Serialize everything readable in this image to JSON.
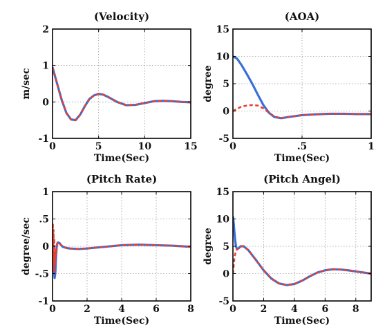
{
  "chart_data": [
    {
      "type": "line",
      "title": "(Velocity)",
      "xlabel": "Time(Sec)",
      "ylabel": "m/sec",
      "xlim": [
        0,
        15
      ],
      "ylim": [
        -1,
        2
      ],
      "xticks": [
        0,
        5,
        10,
        15
      ],
      "yticks": [
        -1,
        0,
        1,
        2
      ],
      "grid": true,
      "series": [
        {
          "color": "#3a6fd8",
          "style": "solid",
          "x": [
            0,
            0.5,
            1,
            1.5,
            2,
            2.5,
            3,
            3.5,
            4,
            4.5,
            5,
            5.5,
            6,
            7,
            8,
            9,
            10,
            11,
            12,
            13,
            14,
            15
          ],
          "y": [
            0.95,
            0.5,
            0.05,
            -0.3,
            -0.48,
            -0.5,
            -0.35,
            -0.12,
            0.08,
            0.18,
            0.22,
            0.2,
            0.14,
            0.0,
            -0.09,
            -0.08,
            -0.03,
            0.02,
            0.03,
            0.02,
            0.0,
            -0.01
          ]
        },
        {
          "color": "#e84030",
          "style": "dashed",
          "x": [
            0,
            0.5,
            1,
            1.5,
            2,
            2.5,
            3,
            3.5,
            4,
            4.5,
            5,
            5.5,
            6,
            7,
            8,
            9,
            10,
            11,
            12,
            13,
            14,
            15
          ],
          "y": [
            0.95,
            0.5,
            0.05,
            -0.3,
            -0.48,
            -0.5,
            -0.35,
            -0.12,
            0.08,
            0.18,
            0.22,
            0.2,
            0.14,
            0.0,
            -0.09,
            -0.08,
            -0.03,
            0.02,
            0.03,
            0.02,
            0.0,
            -0.01
          ]
        }
      ]
    },
    {
      "type": "line",
      "title": "(AOA)",
      "xlabel": "Time(Sec)",
      "ylabel": "degree",
      "xlim": [
        0,
        1
      ],
      "ylim": [
        -5,
        15
      ],
      "xticks": [
        0,
        0.5,
        1
      ],
      "yticks": [
        -5,
        0,
        5,
        10,
        15
      ],
      "grid": true,
      "series": [
        {
          "color": "#3a6fd8",
          "style": "solid",
          "x": [
            0,
            0.03,
            0.06,
            0.1,
            0.14,
            0.18,
            0.22,
            0.26,
            0.3,
            0.35,
            0.4,
            0.5,
            0.6,
            0.7,
            0.8,
            0.9,
            1.0
          ],
          "y": [
            10,
            9.6,
            8.5,
            6.8,
            5.0,
            3.0,
            1.1,
            -0.3,
            -1.1,
            -1.3,
            -1.1,
            -0.75,
            -0.6,
            -0.5,
            -0.5,
            -0.55,
            -0.55
          ]
        },
        {
          "color": "#e84030",
          "style": "dashed",
          "x": [
            0,
            0.03,
            0.06,
            0.1,
            0.14,
            0.18,
            0.22,
            0.26,
            0.3,
            0.35,
            0.4,
            0.5,
            0.6,
            0.7,
            0.8,
            0.9,
            1.0
          ],
          "y": [
            0,
            0.4,
            0.8,
            1.0,
            1.1,
            1.0,
            0.5,
            -0.3,
            -1.0,
            -1.3,
            -1.1,
            -0.75,
            -0.6,
            -0.5,
            -0.5,
            -0.55,
            -0.55
          ]
        }
      ]
    },
    {
      "type": "line",
      "title": "(Pitch Rate)",
      "xlabel": "Time(Sec)",
      "ylabel": "degree/sec",
      "xlim": [
        0,
        8
      ],
      "ylim": [
        -1,
        1
      ],
      "xticks": [
        0,
        2,
        4,
        6,
        8
      ],
      "yticks": [
        -1,
        -0.5,
        0,
        0.5,
        1
      ],
      "grid": true,
      "series": [
        {
          "color": "#3a6fd8",
          "style": "solid",
          "x": [
            0,
            0.04,
            0.08,
            0.12,
            0.16,
            0.2,
            0.25,
            0.3,
            0.4,
            0.5,
            0.6,
            0.8,
            1.0,
            1.5,
            2,
            3,
            4,
            5,
            6,
            7,
            8
          ],
          "y": [
            0,
            -0.15,
            -0.4,
            -0.58,
            -0.5,
            -0.2,
            0.02,
            0.07,
            0.06,
            0.02,
            -0.01,
            -0.03,
            -0.04,
            -0.05,
            -0.04,
            -0.01,
            0.02,
            0.03,
            0.02,
            0.01,
            -0.01
          ]
        },
        {
          "color": "#e84030",
          "style": "dashed",
          "x": [
            0,
            0.02,
            0.04,
            0.06,
            0.08,
            0.1,
            0.12,
            0.14,
            0.16,
            0.18,
            0.2,
            0.25,
            0.3,
            0.4,
            0.5,
            0.6,
            0.8,
            1.0,
            1.5,
            2,
            3,
            4,
            5,
            6,
            7,
            8
          ],
          "y": [
            0,
            0.42,
            -0.3,
            0.3,
            -0.45,
            0.15,
            -0.5,
            -0.1,
            -0.35,
            -0.05,
            -0.15,
            0.02,
            0.07,
            0.06,
            0.02,
            -0.01,
            -0.03,
            -0.04,
            -0.05,
            -0.04,
            -0.01,
            0.02,
            0.03,
            0.02,
            0.01,
            -0.01
          ]
        }
      ]
    },
    {
      "type": "line",
      "title": "(Pitch Angel)",
      "xlabel": "Time(Sec)",
      "ylabel": "degree",
      "xlim": [
        0,
        9
      ],
      "ylim": [
        -5,
        15
      ],
      "xticks": [
        0,
        2,
        4,
        6,
        8
      ],
      "yticks": [
        -5,
        0,
        5,
        10,
        15
      ],
      "grid": true,
      "series": [
        {
          "color": "#3a6fd8",
          "style": "solid",
          "x": [
            0,
            0.05,
            0.1,
            0.15,
            0.2,
            0.25,
            0.3,
            0.4,
            0.5,
            0.7,
            1.0,
            1.5,
            2.0,
            2.5,
            3.0,
            3.5,
            4.0,
            4.5,
            5.0,
            5.5,
            6.0,
            6.5,
            7.0,
            7.5,
            8.0,
            8.5,
            9.0
          ],
          "y": [
            10.5,
            9.2,
            7.5,
            6.0,
            5.0,
            4.6,
            4.5,
            4.7,
            5.0,
            5.0,
            4.3,
            2.5,
            0.6,
            -0.9,
            -1.8,
            -2.1,
            -1.9,
            -1.3,
            -0.5,
            0.2,
            0.6,
            0.8,
            0.75,
            0.6,
            0.4,
            0.2,
            0.0
          ]
        },
        {
          "color": "#e84030",
          "style": "dashed",
          "x": [
            0,
            0.05,
            0.1,
            0.15,
            0.2,
            0.25,
            0.3,
            0.4,
            0.5,
            0.7,
            1.0,
            1.5,
            2.0,
            2.5,
            3.0,
            3.5,
            4.0,
            4.5,
            5.0,
            5.5,
            6.0,
            6.5,
            7.0,
            7.5,
            8.0,
            8.5,
            9.0
          ],
          "y": [
            0,
            1.5,
            2.8,
            3.6,
            4.1,
            4.4,
            4.5,
            4.7,
            5.0,
            5.0,
            4.3,
            2.5,
            0.6,
            -0.9,
            -1.8,
            -2.1,
            -1.9,
            -1.3,
            -0.5,
            0.2,
            0.6,
            0.8,
            0.75,
            0.6,
            0.4,
            0.2,
            0.0
          ]
        }
      ]
    }
  ]
}
